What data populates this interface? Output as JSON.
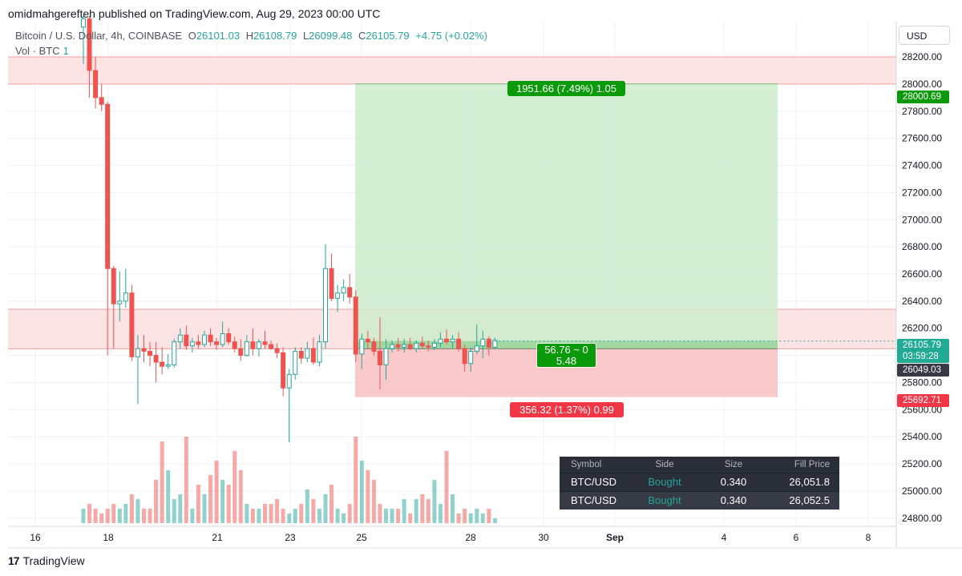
{
  "header": {
    "published_line": "omidmahgerefteh published on TradingView.com, Aug 29, 2023 00:00 UTC"
  },
  "legend": {
    "symbol": "Bitcoin / U.S. Dollar, 4h, COINBASE",
    "o_label": "O",
    "o": "26101.03",
    "h_label": "H",
    "h": "26108.79",
    "l_label": "L",
    "l": "26099.48",
    "c_label": "C",
    "c": "26105.79",
    "change": "+4.75 (+0.02%)",
    "vol_label": "Vol · BTC",
    "vol": "1"
  },
  "currency_button": "USD",
  "position": {
    "target_label": "1951.66 (7.49%) 1.05",
    "stop_label": "356.32 (1.37%) 0.99",
    "mid_line1": "56.76 ~ 0",
    "mid_line2": "5.48"
  },
  "price_tags": {
    "target": "28000.69",
    "last_price": "26105.79",
    "countdown": "03:59:28",
    "entry": "26049.03",
    "stop": "25692.71"
  },
  "orders": {
    "headers": [
      "Symbol",
      "Side",
      "Size",
      "Fill Price"
    ],
    "rows": [
      [
        "BTC/USD",
        "Bought",
        "0.340",
        "26,051.8"
      ],
      [
        "BTC/USD",
        "Bought",
        "0.340",
        "26,052.5"
      ]
    ]
  },
  "footer": {
    "brand": "TradingView",
    "logo_mark": "17"
  },
  "colors": {
    "up": "#26a69a",
    "down": "#ef5350",
    "profit_fill": "#cdeccd",
    "loss_fill": "#f9c0c0",
    "zone_fill": "#fde4e4",
    "zone_line": "#f0a0a0",
    "accent_green": "#0a9a0a",
    "accent_red": "#f23645"
  },
  "chart_data": {
    "type": "candlestick",
    "title": "Bitcoin / U.S. Dollar, 4h, COINBASE",
    "ylabel": "USD",
    "ylim": [
      24740,
      28460
    ],
    "y_ticks": [
      24800,
      25000,
      25200,
      25400,
      25600,
      25800,
      26000,
      26200,
      26400,
      26600,
      26800,
      27000,
      27200,
      27400,
      27600,
      27800,
      28000,
      28200
    ],
    "x_ticks": [
      "16",
      "18",
      "21",
      "23",
      "25",
      "28",
      "30",
      "Sep",
      "4",
      "6",
      "8"
    ],
    "zones": [
      {
        "from": 28000,
        "to": 28200
      },
      {
        "from": 26049,
        "to": 26340
      }
    ],
    "long_position": {
      "entry": 26049.03,
      "target": 28000.69,
      "stop": 25692.71
    },
    "candles": [
      {
        "o": 28420,
        "h": 28500,
        "l": 28150,
        "c": 28480
      },
      {
        "o": 28480,
        "h": 28500,
        "l": 27900,
        "c": 28100
      },
      {
        "o": 28100,
        "h": 28200,
        "l": 27820,
        "c": 27900
      },
      {
        "o": 27900,
        "h": 28000,
        "l": 27800,
        "c": 27850
      },
      {
        "o": 27850,
        "h": 27870,
        "l": 26000,
        "c": 26640
      },
      {
        "o": 26640,
        "h": 26660,
        "l": 26050,
        "c": 26380
      },
      {
        "o": 26380,
        "h": 26620,
        "l": 26250,
        "c": 26400
      },
      {
        "o": 26400,
        "h": 26640,
        "l": 26350,
        "c": 26460
      },
      {
        "o": 26460,
        "h": 26520,
        "l": 25960,
        "c": 25990
      },
      {
        "o": 25990,
        "h": 26150,
        "l": 25640,
        "c": 26050
      },
      {
        "o": 26050,
        "h": 26150,
        "l": 25950,
        "c": 26030
      },
      {
        "o": 26030,
        "h": 26100,
        "l": 25920,
        "c": 26000
      },
      {
        "o": 26000,
        "h": 26100,
        "l": 25800,
        "c": 25950
      },
      {
        "o": 25950,
        "h": 26060,
        "l": 25860,
        "c": 25920
      },
      {
        "o": 25920,
        "h": 26010,
        "l": 25900,
        "c": 25930
      },
      {
        "o": 25930,
        "h": 26120,
        "l": 25910,
        "c": 26100
      },
      {
        "o": 26100,
        "h": 26200,
        "l": 26050,
        "c": 26150
      },
      {
        "o": 26150,
        "h": 26220,
        "l": 26040,
        "c": 26070
      },
      {
        "o": 26070,
        "h": 26130,
        "l": 26020,
        "c": 26100
      },
      {
        "o": 26100,
        "h": 26150,
        "l": 26050,
        "c": 26080
      },
      {
        "o": 26080,
        "h": 26180,
        "l": 26060,
        "c": 26150
      },
      {
        "o": 26150,
        "h": 26200,
        "l": 26070,
        "c": 26100
      },
      {
        "o": 26100,
        "h": 26130,
        "l": 26040,
        "c": 26080
      },
      {
        "o": 26080,
        "h": 26250,
        "l": 26060,
        "c": 26160
      },
      {
        "o": 26160,
        "h": 26200,
        "l": 26080,
        "c": 26100
      },
      {
        "o": 26100,
        "h": 26140,
        "l": 26020,
        "c": 26050
      },
      {
        "o": 26050,
        "h": 26120,
        "l": 25960,
        "c": 26000
      },
      {
        "o": 26000,
        "h": 26150,
        "l": 25990,
        "c": 26100
      },
      {
        "o": 26100,
        "h": 26200,
        "l": 26000,
        "c": 26050
      },
      {
        "o": 26050,
        "h": 26120,
        "l": 25990,
        "c": 26100
      },
      {
        "o": 26100,
        "h": 26180,
        "l": 26050,
        "c": 26080
      },
      {
        "o": 26080,
        "h": 26110,
        "l": 26040,
        "c": 26050
      },
      {
        "o": 26050,
        "h": 26090,
        "l": 25980,
        "c": 26020
      },
      {
        "o": 26020,
        "h": 26060,
        "l": 25700,
        "c": 25760
      },
      {
        "o": 25760,
        "h": 25900,
        "l": 25360,
        "c": 25860
      },
      {
        "o": 25860,
        "h": 26060,
        "l": 25820,
        "c": 26030
      },
      {
        "o": 26030,
        "h": 26060,
        "l": 25940,
        "c": 25980
      },
      {
        "o": 25980,
        "h": 26100,
        "l": 25950,
        "c": 26050
      },
      {
        "o": 26050,
        "h": 26130,
        "l": 25930,
        "c": 25950
      },
      {
        "o": 25950,
        "h": 26150,
        "l": 25920,
        "c": 26100
      },
      {
        "o": 26100,
        "h": 26820,
        "l": 26050,
        "c": 26640
      },
      {
        "o": 26640,
        "h": 26750,
        "l": 26400,
        "c": 26420
      },
      {
        "o": 26420,
        "h": 26520,
        "l": 26320,
        "c": 26460
      },
      {
        "o": 26460,
        "h": 26560,
        "l": 26400,
        "c": 26500
      },
      {
        "o": 26500,
        "h": 26600,
        "l": 26380,
        "c": 26430
      },
      {
        "o": 26430,
        "h": 26480,
        "l": 25950,
        "c": 26010
      },
      {
        "o": 26010,
        "h": 26160,
        "l": 25900,
        "c": 26120
      },
      {
        "o": 26120,
        "h": 26180,
        "l": 26050,
        "c": 26100
      },
      {
        "o": 26100,
        "h": 26130,
        "l": 26000,
        "c": 26030
      },
      {
        "o": 26030,
        "h": 26280,
        "l": 25750,
        "c": 25930
      },
      {
        "o": 25930,
        "h": 26120,
        "l": 25820,
        "c": 26050
      },
      {
        "o": 26050,
        "h": 26110,
        "l": 26020,
        "c": 26080
      },
      {
        "o": 26080,
        "h": 26130,
        "l": 26030,
        "c": 26060
      },
      {
        "o": 26060,
        "h": 26120,
        "l": 26020,
        "c": 26080
      },
      {
        "o": 26080,
        "h": 26130,
        "l": 26040,
        "c": 26050
      },
      {
        "o": 26050,
        "h": 26110,
        "l": 26020,
        "c": 26090
      },
      {
        "o": 26090,
        "h": 26140,
        "l": 26050,
        "c": 26070
      },
      {
        "o": 26070,
        "h": 26110,
        "l": 26030,
        "c": 26060
      },
      {
        "o": 26060,
        "h": 26120,
        "l": 26040,
        "c": 26090
      },
      {
        "o": 26090,
        "h": 26170,
        "l": 26060,
        "c": 26120
      },
      {
        "o": 26120,
        "h": 26190,
        "l": 26080,
        "c": 26100
      },
      {
        "o": 26100,
        "h": 26150,
        "l": 26050,
        "c": 26120
      },
      {
        "o": 26120,
        "h": 26170,
        "l": 26030,
        "c": 26050
      },
      {
        "o": 26050,
        "h": 26080,
        "l": 25880,
        "c": 25940
      },
      {
        "o": 25940,
        "h": 26060,
        "l": 25880,
        "c": 26030
      },
      {
        "o": 26030,
        "h": 26230,
        "l": 26010,
        "c": 26070
      },
      {
        "o": 26070,
        "h": 26180,
        "l": 25980,
        "c": 26120
      },
      {
        "o": 26120,
        "h": 26140,
        "l": 26000,
        "c": 26060
      },
      {
        "o": 26060,
        "h": 26130,
        "l": 26050,
        "c": 26110
      }
    ],
    "volume": [
      3,
      4,
      3,
      2,
      3,
      4,
      3,
      4,
      6,
      5,
      3,
      3,
      9,
      17,
      11,
      5,
      6,
      18,
      3,
      8,
      6,
      10,
      13,
      9,
      8,
      15,
      11,
      4,
      3,
      3,
      4,
      4,
      5,
      3,
      2,
      3,
      4,
      7,
      5,
      3,
      6,
      8,
      3,
      2,
      4,
      18,
      13,
      11,
      9,
      4,
      3,
      3,
      3,
      5,
      2,
      5,
      6,
      5,
      9,
      4,
      15,
      6,
      2,
      3,
      2,
      3,
      2,
      3,
      1
    ]
  }
}
